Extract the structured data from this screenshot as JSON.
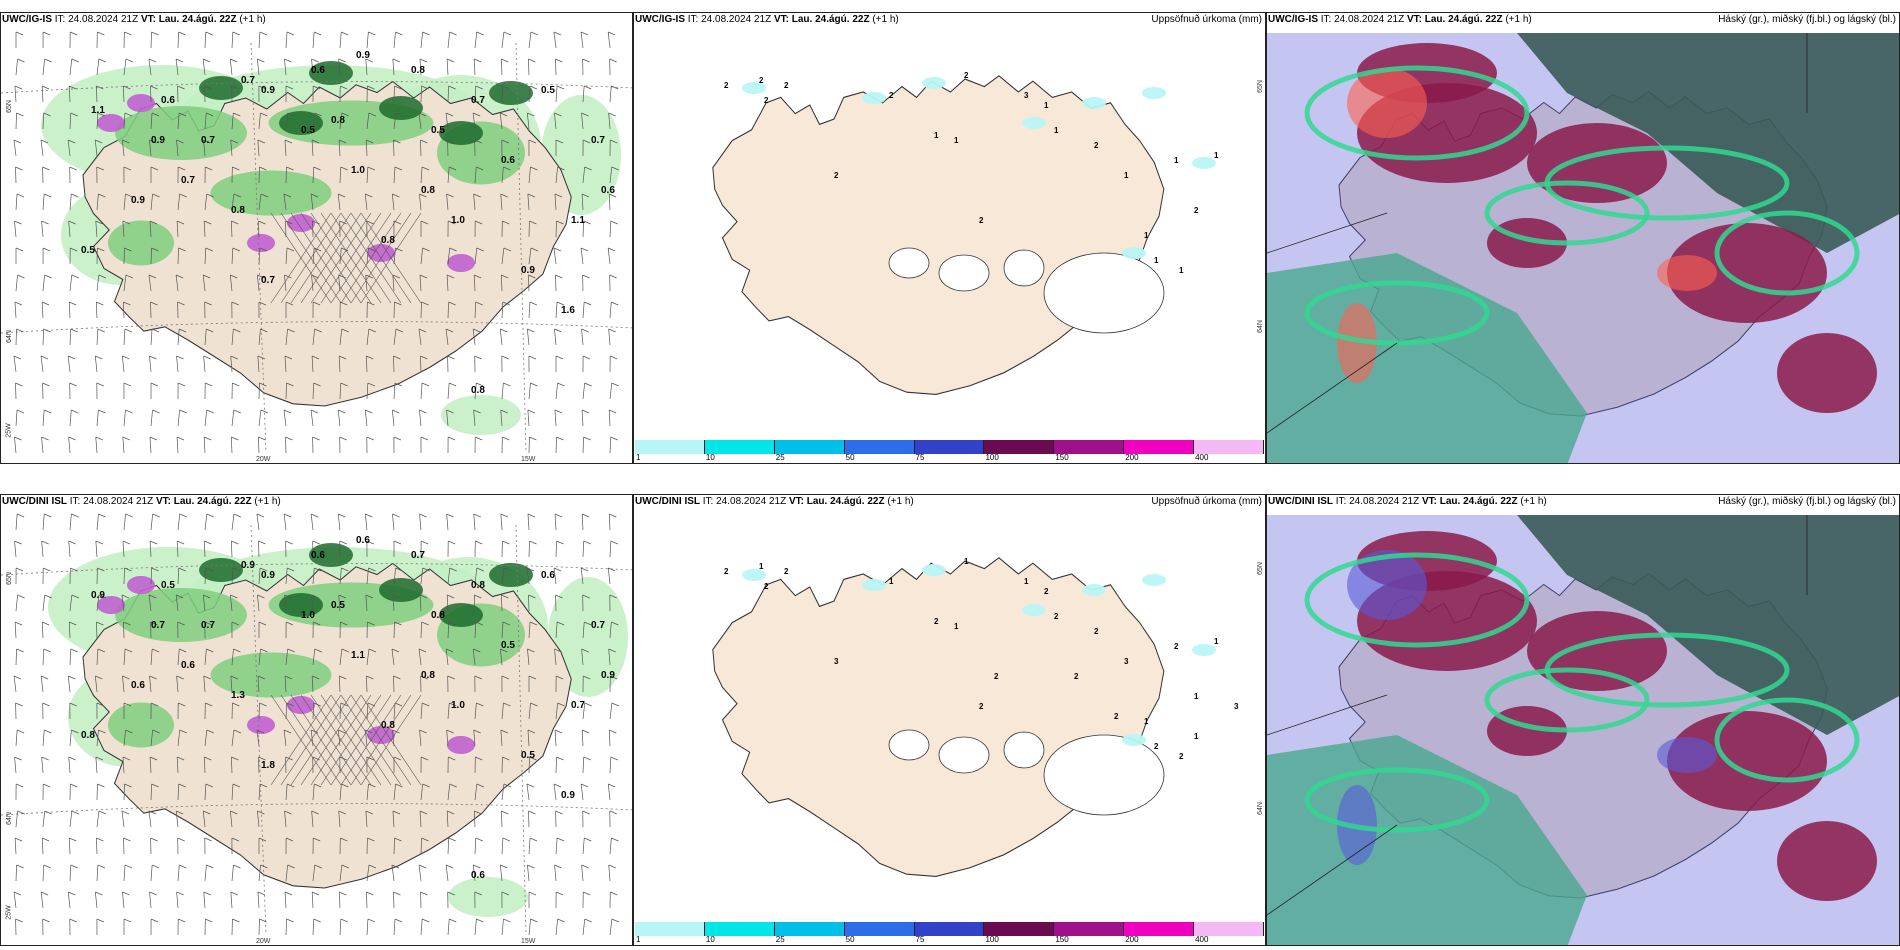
{
  "panels": [
    {
      "model": "UWC/IG-IS",
      "it_label": "IT:",
      "it": "24.08.2024 21Z",
      "vt_label": "VT:",
      "vt": "Lau. 24.ágú. 22Z",
      "lead": "(+1 h)",
      "right_title": "",
      "axis_labels": [
        "65N",
        "64N",
        "20W",
        "15W",
        "25W"
      ],
      "values": [
        "0.9",
        "0.7",
        "0.6",
        "0.7",
        "0.5",
        "0.8",
        "0.9",
        "1.0",
        "0.8",
        "1.1",
        "0.7",
        "0.6",
        "0.5",
        "0.8",
        "1.0",
        "0.9",
        "0.7",
        "0.6",
        "0.8",
        "0.5",
        "0.9",
        "1.1",
        "1.6",
        "0.7",
        "0.8",
        "0.9",
        "0.5",
        "0.6",
        "0.8",
        "0.7"
      ]
    },
    {
      "model": "UWC/IG-IS",
      "it_label": "IT:",
      "it": "24.08.2024 21Z",
      "vt_label": "VT:",
      "vt": "Lau. 24.ágú. 22Z",
      "lead": "(+1 h)",
      "right_title": "Uppsöfnuð úrkoma (mm)",
      "axis_labels": [
        "65N",
        "64N"
      ],
      "values": [
        "2",
        "2",
        "2",
        "2",
        "2",
        "2",
        "3",
        "1",
        "1",
        "2",
        "1",
        "1",
        "2",
        "2",
        "1",
        "1",
        "1",
        "2",
        "1",
        "1",
        "1"
      ]
    },
    {
      "model": "UWC/IG-IS",
      "it_label": "IT:",
      "it": "24.08.2024 21Z",
      "vt_label": "VT:",
      "vt": "Lau. 24.ágú. 22Z",
      "lead": "(+1 h)",
      "right_title": "Háský (gr.), miðský (fj.bl.) og lágský (bl.)",
      "axis_labels": [],
      "values": []
    },
    {
      "model": "UWC/DINI ISL",
      "it_label": "IT:",
      "it": "24.08.2024 21Z",
      "vt_label": "VT:",
      "vt": "Lau. 24.ágú. 22Z",
      "lead": "(+1 h)",
      "right_title": "",
      "axis_labels": [
        "65N",
        "64N",
        "20W",
        "15W",
        "25W"
      ],
      "values": [
        "0.6",
        "0.8",
        "0.5",
        "0.9",
        "1.0",
        "0.7",
        "0.6",
        "1.1",
        "0.8",
        "0.9",
        "0.7",
        "0.5",
        "0.6",
        "0.8",
        "1.0",
        "0.9",
        "0.7",
        "0.6",
        "1.3",
        "0.8",
        "0.5",
        "0.7",
        "0.9",
        "1.8",
        "0.6",
        "0.7",
        "0.8",
        "0.9",
        "0.5",
        "0.6"
      ]
    },
    {
      "model": "UWC/DINI ISL",
      "it_label": "IT:",
      "it": "24.08.2024 21Z",
      "vt_label": "VT:",
      "vt": "Lau. 24.ágú. 22Z",
      "lead": "(+1 h)",
      "right_title": "Uppsöfnuð úrkoma (mm)",
      "axis_labels": [
        "65N",
        "64N"
      ],
      "values": [
        "2",
        "1",
        "2",
        "2",
        "1",
        "1",
        "1",
        "2",
        "1",
        "3",
        "2",
        "2",
        "2",
        "2",
        "3",
        "2",
        "1",
        "1",
        "1",
        "2",
        "2",
        "1",
        "3",
        "2",
        "2",
        "2"
      ]
    },
    {
      "model": "UWC/DINI ISL",
      "it_label": "IT:",
      "it": "24.08.2024 21Z",
      "vt_label": "VT:",
      "vt": "Lau. 24.ágú. 22Z",
      "lead": "(+1 h)",
      "right_title": "Háský (gr.), miðský (fj.bl.) og lágský (bl.)",
      "axis_labels": [],
      "values": []
    }
  ],
  "colorbar": {
    "labels": [
      "1",
      "10",
      "25",
      "50",
      "75",
      "100",
      "150",
      "200",
      "400"
    ],
    "colors": [
      "#b8f5f5",
      "#00e5e8",
      "#00bfe8",
      "#2e6de8",
      "#3242c8",
      "#6a0a50",
      "#a0108a",
      "#f000c0",
      "#f4b8f4"
    ]
  },
  "colors": {
    "land": "#efe2d2",
    "land_precip": "#f7e8d8",
    "green_light": "#c4f0c4",
    "green_mid": "#7fcf7f",
    "green_dark": "#1d6b2d",
    "purple": "#c060d0",
    "cloud_high": "#3a5a58",
    "cloud_mid": "#8a1a4a",
    "cloud_low": "#5a5ad8",
    "cloud_green": "#30d890"
  }
}
